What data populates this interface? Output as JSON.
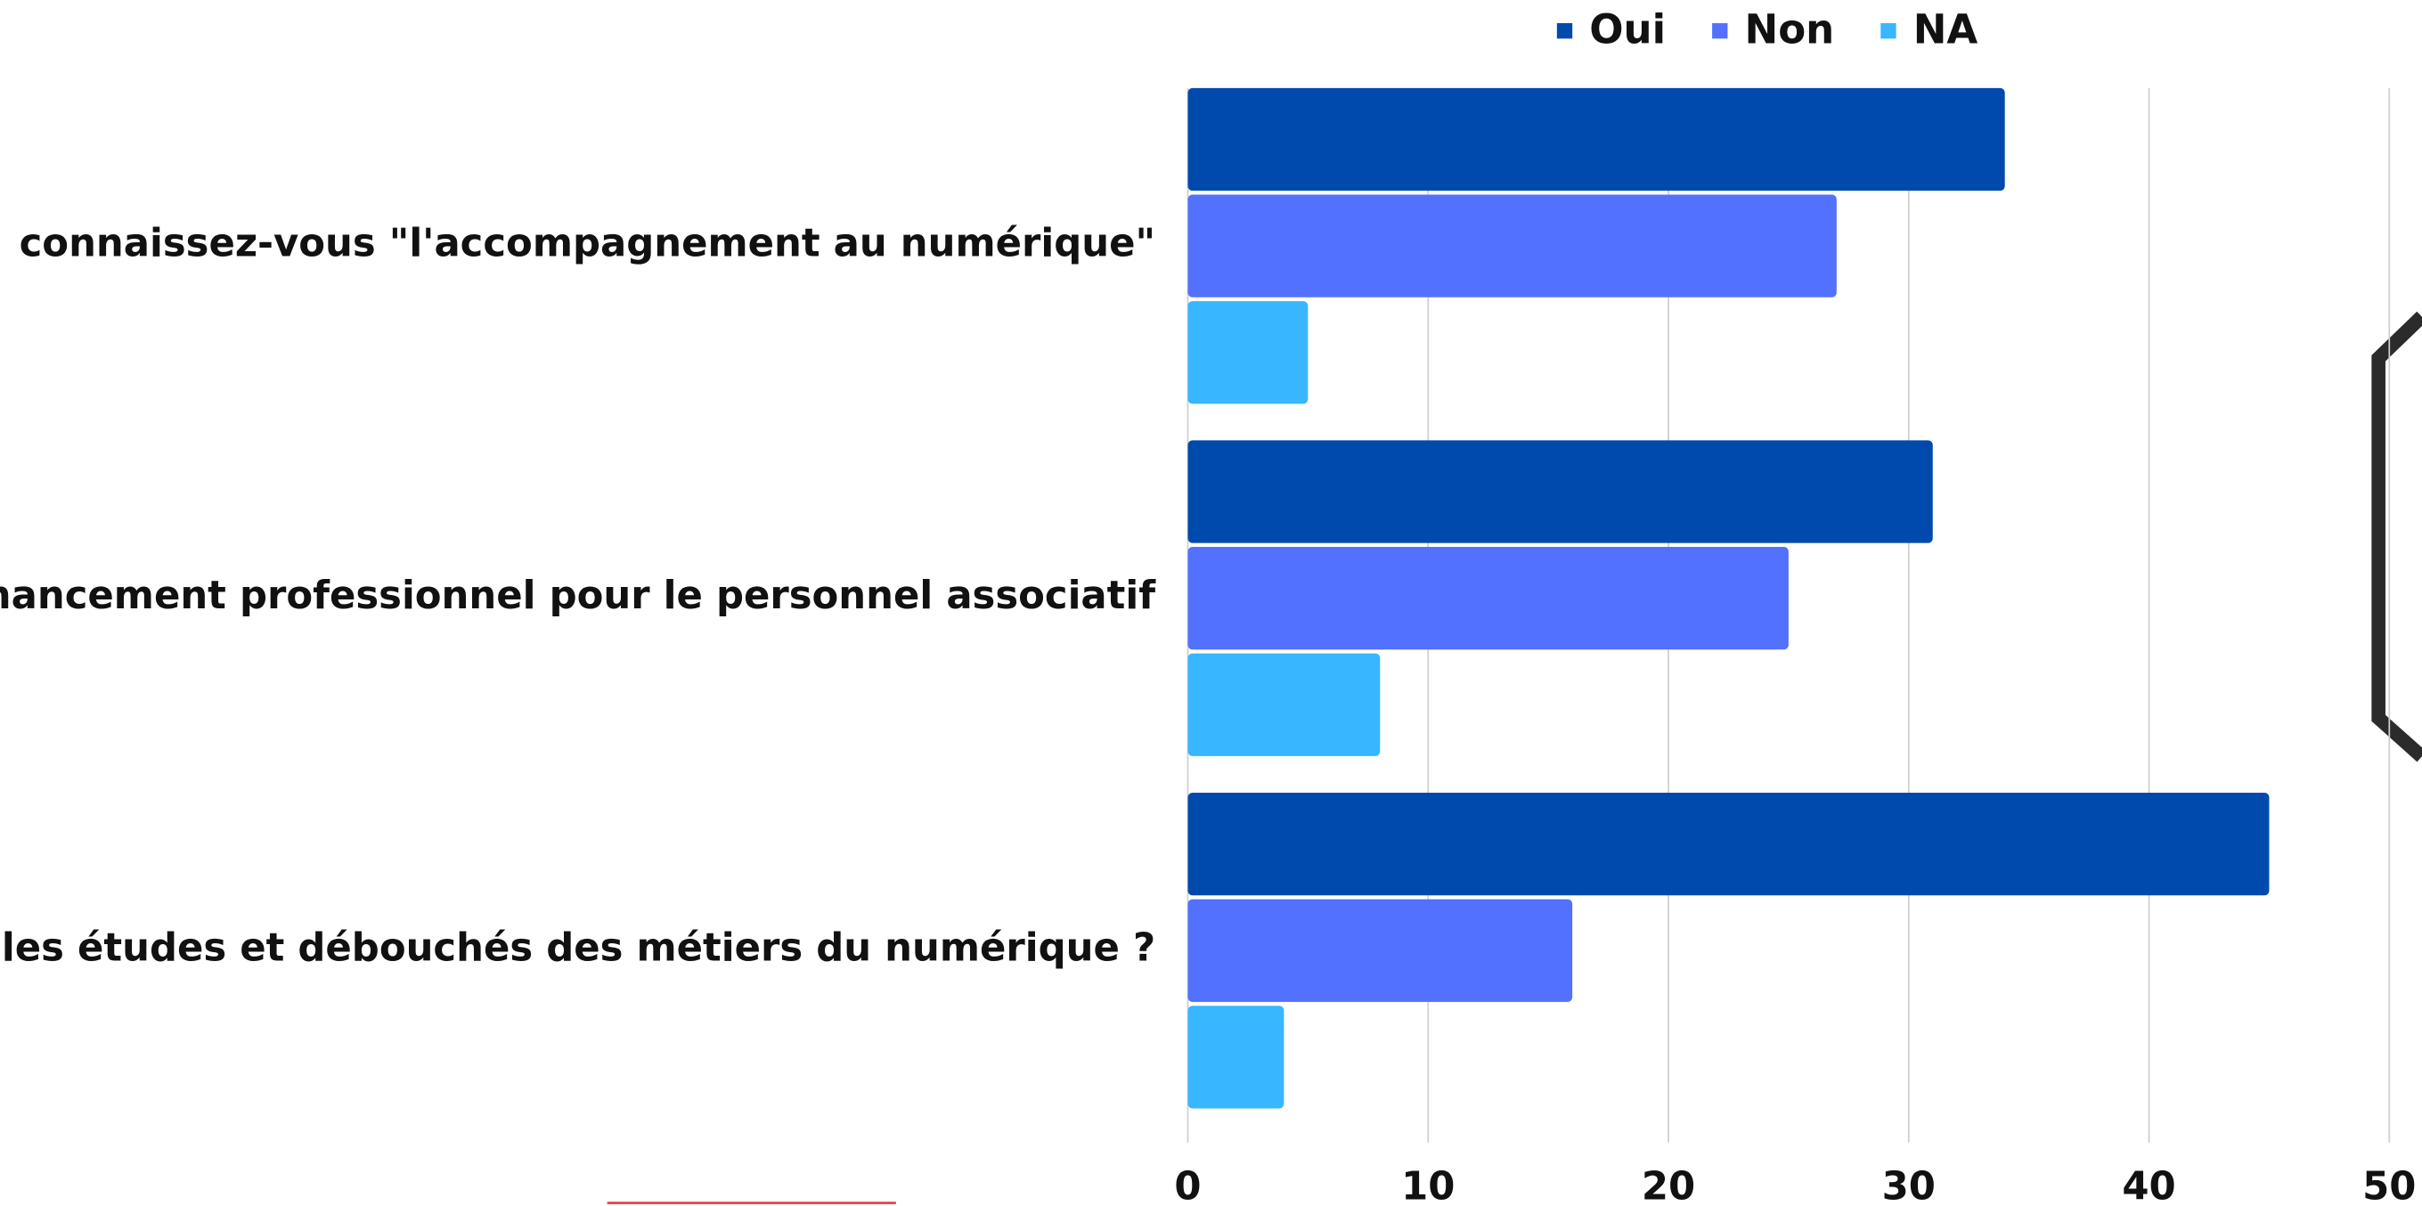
{
  "chart_data": {
    "type": "barh",
    "categories": [
      "connaissez-vous \"l'accompagnement au numérique\"",
      "nancement professionnel pour le personnel associatif",
      "s les études et débouchés des métiers du numérique ?"
    ],
    "series": [
      {
        "name": "Oui",
        "color": "#004aad",
        "values": [
          34,
          31,
          45
        ]
      },
      {
        "name": "Non",
        "color": "#5271ff",
        "values": [
          27,
          25,
          16
        ]
      },
      {
        "name": "NA",
        "color": "#38b6ff",
        "values": [
          5,
          8,
          4
        ]
      }
    ],
    "xlim": [
      0,
      50
    ],
    "xticks": [
      0,
      10,
      20,
      30,
      40,
      50
    ],
    "grid": true,
    "legend": "top"
  }
}
